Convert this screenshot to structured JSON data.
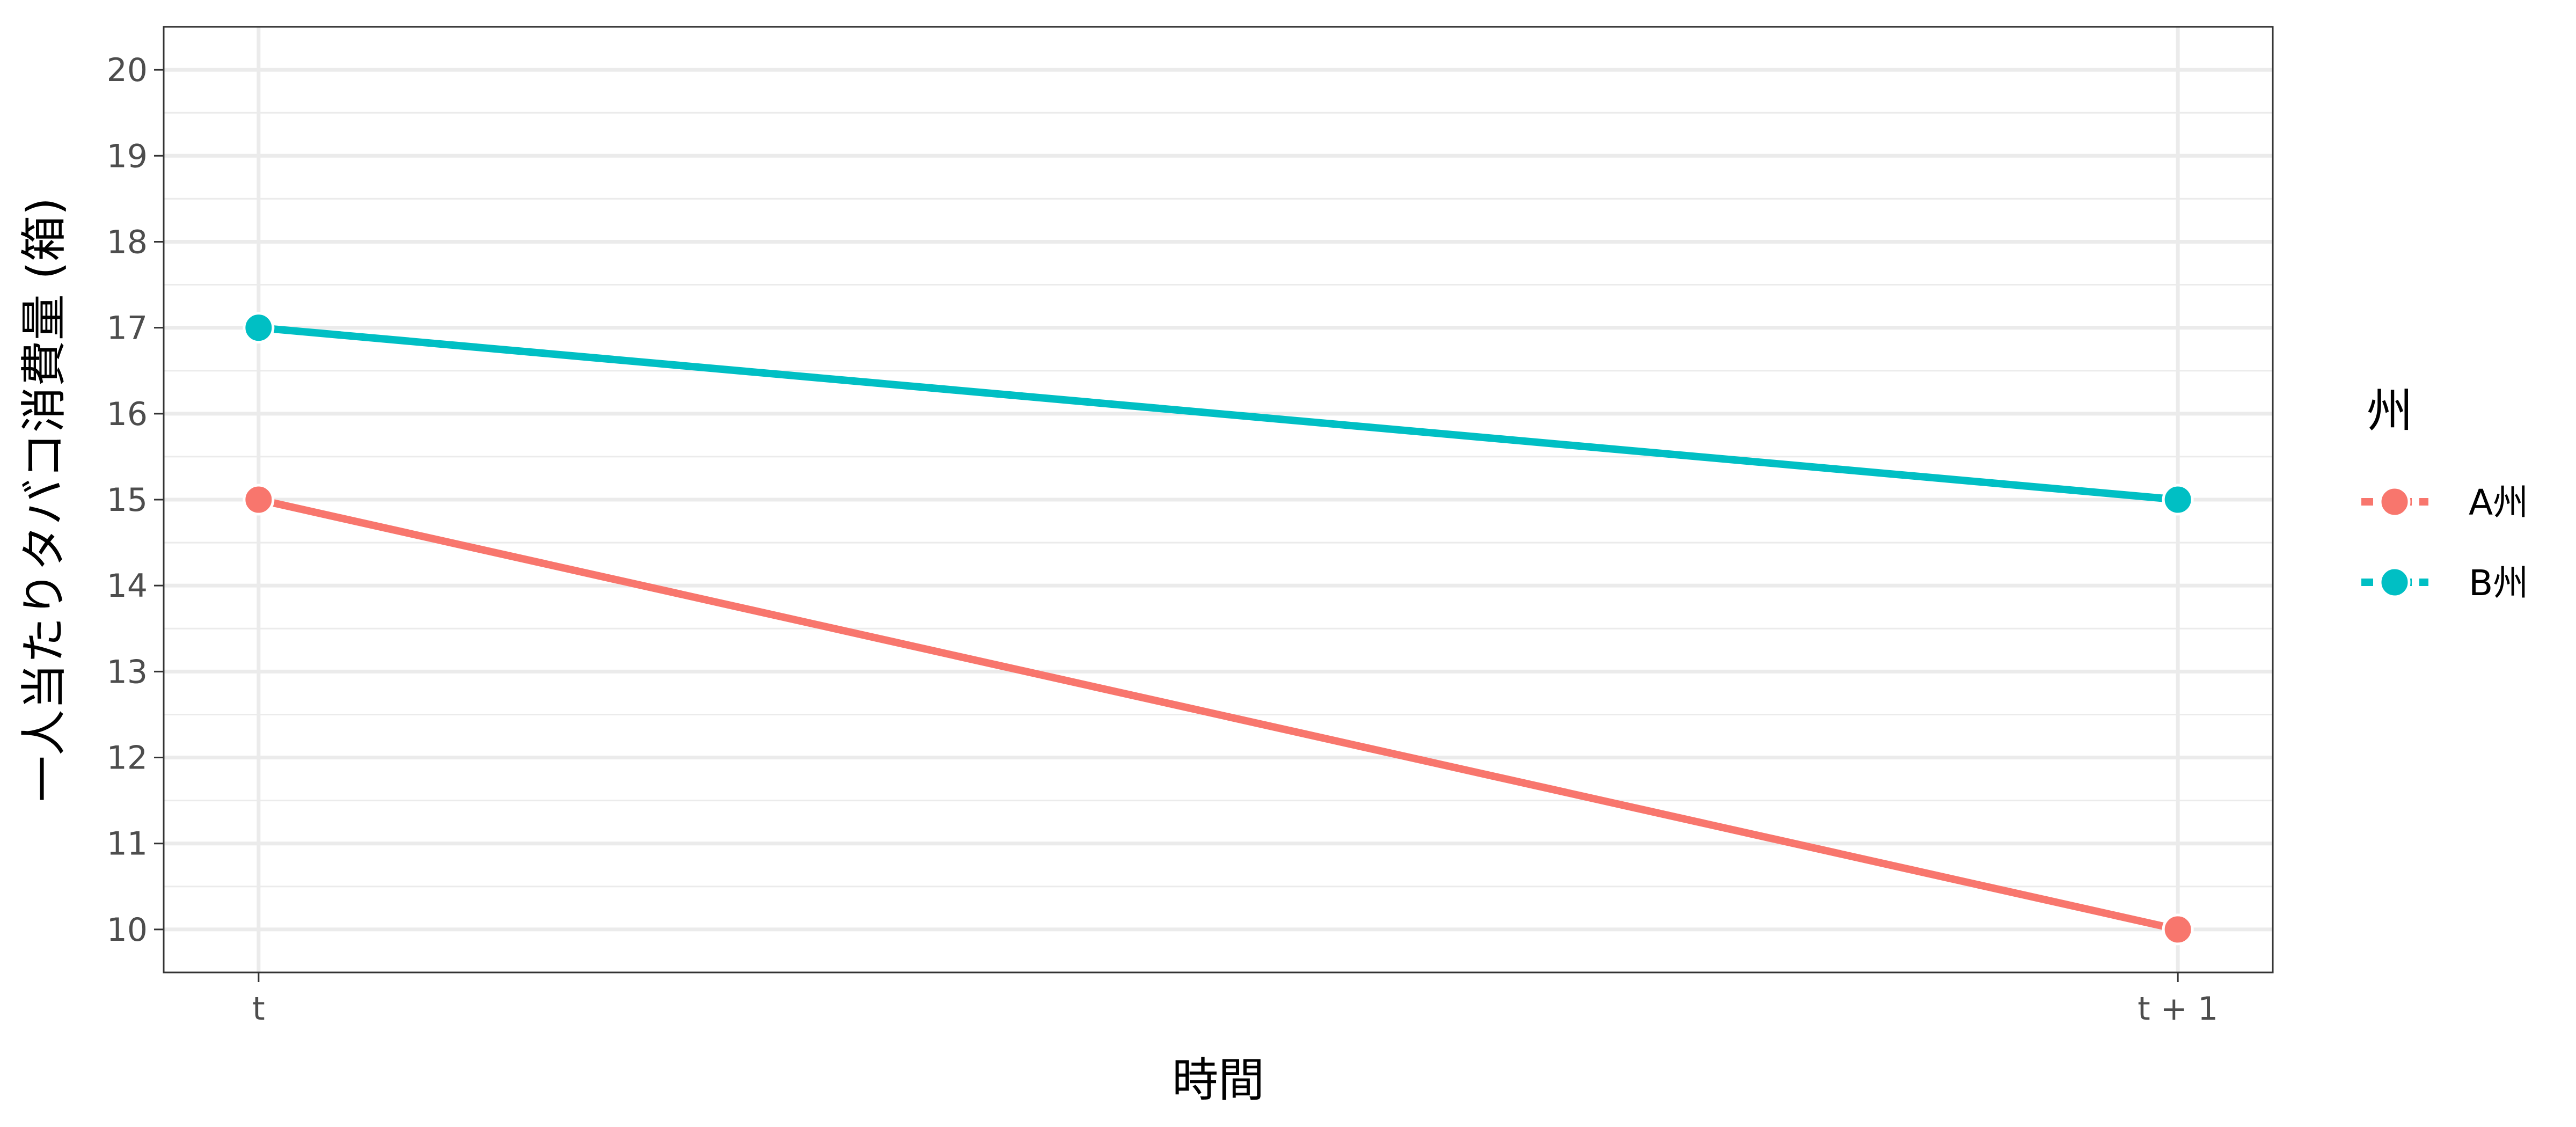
{
  "chart_data": {
    "type": "line",
    "title": "",
    "xlabel": "時間",
    "ylabel": "一人当たりタバコ消費量 (箱)",
    "categories": [
      "t",
      "t + 1"
    ],
    "ylim": [
      9.5,
      20.5
    ],
    "yticks": [
      10,
      11,
      12,
      13,
      14,
      15,
      16,
      17,
      18,
      19,
      20
    ],
    "grid": true,
    "legend_title": "州",
    "legend_position": "right",
    "series": [
      {
        "name": "A州",
        "values": [
          15,
          10
        ],
        "color": "#F8766D"
      },
      {
        "name": "B州",
        "values": [
          17,
          15
        ],
        "color": "#00BFC4"
      }
    ]
  }
}
